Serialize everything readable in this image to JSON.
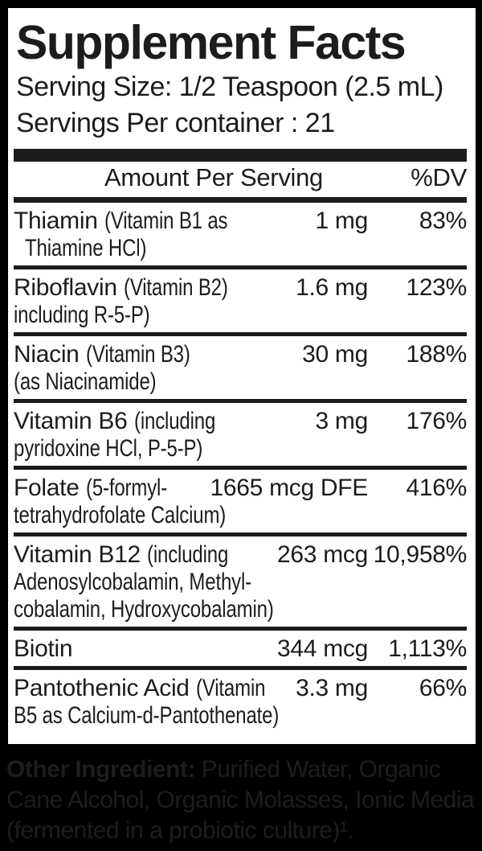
{
  "panel": {
    "title": "Supplement Facts",
    "serving_size": "Serving Size: 1/2 Teaspoon (2.5 mL)",
    "servings_per_container": "Servings Per container : 21",
    "header": {
      "amount": "Amount Per Serving",
      "dv": "%DV"
    },
    "rows": [
      {
        "line1": [
          {
            "condensed": false,
            "text": "Thiamin "
          },
          {
            "condensed": true,
            "text": "(Vitamin B1 as"
          }
        ],
        "cont_lines": [
          {
            "text": "Thiamine HCl)",
            "indent": true
          }
        ],
        "amount": "1 mg",
        "dv": "83%"
      },
      {
        "line1": [
          {
            "condensed": false,
            "text": "Riboflavin "
          },
          {
            "condensed": true,
            "text": "(Vitamin B2)"
          }
        ],
        "cont_lines": [
          {
            "text": "including R-5-P)",
            "indent": false
          }
        ],
        "amount": "1.6 mg",
        "dv": "123%"
      },
      {
        "line1": [
          {
            "condensed": false,
            "text": "Niacin "
          },
          {
            "condensed": true,
            "text": "(Vitamin B3)"
          }
        ],
        "cont_lines": [
          {
            "text": "(as Niacinamide)",
            "indent": false
          }
        ],
        "amount": "30 mg",
        "dv": "188%"
      },
      {
        "line1": [
          {
            "condensed": false,
            "text": "Vitamin B6 "
          },
          {
            "condensed": true,
            "text": "(including"
          }
        ],
        "cont_lines": [
          {
            "text": "pyridoxine HCl, P-5-P)",
            "indent": false
          }
        ],
        "amount": "3 mg",
        "dv": "176%"
      },
      {
        "line1": [
          {
            "condensed": false,
            "text": "Folate "
          },
          {
            "condensed": true,
            "text": "(5-formyl-"
          }
        ],
        "cont_lines": [
          {
            "text": "tetrahydrofolate Calcium)",
            "indent": false
          }
        ],
        "amount": "1665 mcg DFE",
        "dv": "416%"
      },
      {
        "line1": [
          {
            "condensed": false,
            "text": "Vitamin B12 "
          },
          {
            "condensed": true,
            "text": "(including"
          }
        ],
        "cont_lines": [
          {
            "text": "Adenosylcobalamin, Methyl-",
            "indent": false
          },
          {
            "text": "cobalamin, Hydroxycobalamin)",
            "indent": false
          }
        ],
        "amount": "263 mcg",
        "dv": "10,958%"
      },
      {
        "line1": [
          {
            "condensed": false,
            "text": "Biotin"
          }
        ],
        "cont_lines": [],
        "amount": "344 mcg",
        "dv": "1,113%"
      },
      {
        "line1": [
          {
            "condensed": false,
            "text": "Pantothenic Acid "
          },
          {
            "condensed": true,
            "text": "(Vitamin"
          }
        ],
        "cont_lines": [
          {
            "text": "B5 as Calcium-d-Pantothenate)",
            "indent": false
          }
        ],
        "amount": "3.3 mg",
        "dv": "66%"
      }
    ]
  },
  "footer": {
    "lines": [
      {
        "bold": "Other Ingredient:",
        "text": " Purified Water, Organic"
      },
      {
        "bold": "",
        "text": "Cane Alcohol, Organic Molasses, Ionic Media"
      },
      {
        "bold": "",
        "text": "(fermented in a probiotic culture)¹."
      }
    ]
  },
  "colors": {
    "ink": "#1d1c1a",
    "panel_bg": "#ffffff",
    "outer_bg": "#000000",
    "footer_ink": "#1d1d1b"
  }
}
